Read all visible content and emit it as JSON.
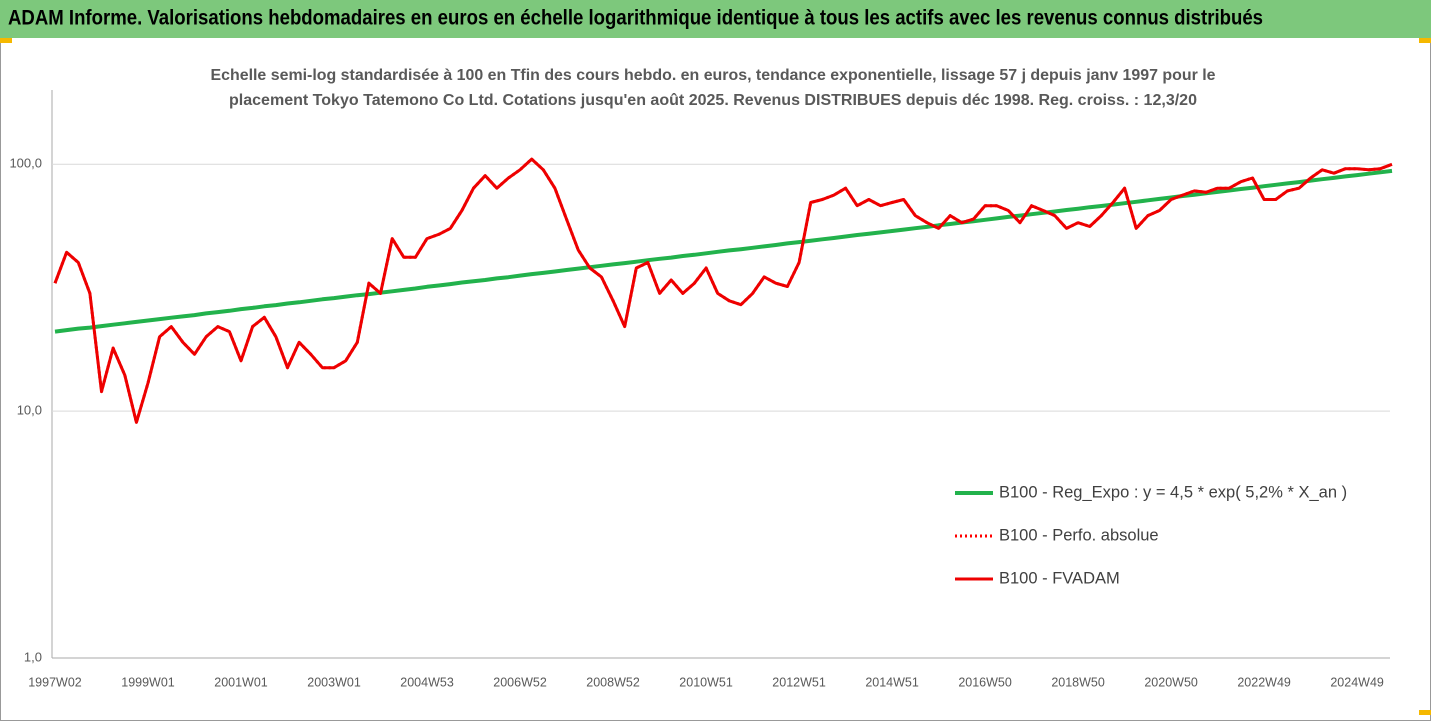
{
  "header": {
    "title": "ADAM Informe. Valorisations hebdomadaires en euros en échelle logarithmique identique à tous les actifs avec les revenus connus distribués"
  },
  "chart_data": {
    "type": "line",
    "subtitle": [
      "Echelle semi-log standardisée à 100 en Tfin des cours hebdo. en euros, tendance exponentielle, lissage 57 j depuis janv 1997 pour le",
      "placement Tokyo Tatemono Co Ltd. Cotations jusqu'en août 2025. Revenus DISTRIBUES depuis déc 1998. Reg. croiss. : 12,3/20"
    ],
    "log_scale": true,
    "grid": true,
    "legend": "right",
    "ylim": [
      1,
      200
    ],
    "yticks": [
      {
        "value": 1,
        "label": "1,0"
      },
      {
        "value": 10,
        "label": "10,0"
      },
      {
        "value": 100,
        "label": "100,0"
      }
    ],
    "categories": [
      "1997W02",
      null,
      null,
      null,
      null,
      null,
      null,
      null,
      "1999W01",
      null,
      null,
      null,
      null,
      null,
      null,
      null,
      "2001W01",
      null,
      null,
      null,
      null,
      null,
      null,
      null,
      "2003W01",
      null,
      null,
      null,
      null,
      null,
      null,
      null,
      "2004W53",
      null,
      null,
      null,
      null,
      null,
      null,
      null,
      "2006W52",
      null,
      null,
      null,
      null,
      null,
      null,
      null,
      "2008W52",
      null,
      null,
      null,
      null,
      null,
      null,
      null,
      "2010W51",
      null,
      null,
      null,
      null,
      null,
      null,
      null,
      "2012W51",
      null,
      null,
      null,
      null,
      null,
      null,
      null,
      "2014W51",
      null,
      null,
      null,
      null,
      null,
      null,
      null,
      "2016W50",
      null,
      null,
      null,
      null,
      null,
      null,
      null,
      "2018W50",
      null,
      null,
      null,
      null,
      null,
      null,
      null,
      "2020W50",
      null,
      null,
      null,
      null,
      null,
      null,
      null,
      "2022W49",
      null,
      null,
      null,
      null,
      null,
      null,
      null,
      "2024W49",
      null,
      null,
      null
    ],
    "series": [
      {
        "name": "B100 - Reg_Expo : y = 4,5 * exp( 5,2% *  X_an )",
        "color": "#22b24c",
        "style": "solid",
        "width": 4,
        "values": [
          21.0,
          21.3,
          21.6,
          21.8,
          22.1,
          22.4,
          22.7,
          23.0,
          23.3,
          23.6,
          23.9,
          24.2,
          24.5,
          24.9,
          25.2,
          25.5,
          25.9,
          26.2,
          26.6,
          26.9,
          27.3,
          27.6,
          28.0,
          28.4,
          28.7,
          29.1,
          29.5,
          29.8,
          30.2,
          30.6,
          31.0,
          31.4,
          31.9,
          32.3,
          32.7,
          33.2,
          33.6,
          34.0,
          34.5,
          34.9,
          35.4,
          35.9,
          36.3,
          36.8,
          37.3,
          37.8,
          38.3,
          38.8,
          39.3,
          39.8,
          40.3,
          40.9,
          41.4,
          41.9,
          42.5,
          43.0,
          43.6,
          44.2,
          44.8,
          45.3,
          45.9,
          46.5,
          47.1,
          47.8,
          48.4,
          49.0,
          49.7,
          50.3,
          51.0,
          51.7,
          52.3,
          53.0,
          53.7,
          54.4,
          55.1,
          55.8,
          56.6,
          57.3,
          58.1,
          58.8,
          59.6,
          60.4,
          61.2,
          62.0,
          62.8,
          63.6,
          64.4,
          65.3,
          66.1,
          67.0,
          67.8,
          68.7,
          69.6,
          70.5,
          71.5,
          72.4,
          73.4,
          74.4,
          75.3,
          76.3,
          77.3,
          78.3,
          79.4,
          80.4,
          81.5,
          82.6,
          83.7,
          84.7,
          85.9,
          87.0,
          88.1,
          89.3,
          90.4,
          91.6,
          92.8,
          94.0
        ]
      },
      {
        "name": "B100 - Perfo. absolue",
        "color": "#ff0000",
        "style": "dotted",
        "width": 3,
        "values": [
          33,
          44,
          40,
          30,
          12,
          18,
          14,
          9,
          13,
          20,
          22,
          19,
          17,
          20,
          22,
          21,
          16,
          22,
          24,
          20,
          15,
          19,
          17,
          15,
          15,
          16,
          19,
          33,
          30,
          50,
          42,
          42,
          50,
          52,
          55,
          65,
          80,
          90,
          80,
          88,
          95,
          105,
          95,
          80,
          60,
          45,
          38,
          35,
          28,
          22,
          38,
          40,
          30,
          34,
          30,
          33,
          38,
          30,
          28,
          27,
          30,
          35,
          33,
          32,
          40,
          70,
          72,
          75,
          80,
          68,
          72,
          68,
          70,
          72,
          62,
          58,
          55,
          62,
          58,
          60,
          68,
          68,
          65,
          58,
          68,
          65,
          62,
          55,
          58,
          56,
          62,
          70,
          80,
          55,
          62,
          65,
          72,
          75,
          78,
          77,
          80,
          80,
          85,
          88,
          72,
          72,
          78,
          80,
          88,
          95,
          92,
          96,
          96,
          95,
          96,
          100
        ]
      },
      {
        "name": "B100 - FVADAM",
        "color": "#ee0000",
        "style": "solid",
        "width": 3,
        "values": [
          33,
          44,
          40,
          30,
          12,
          18,
          14,
          9,
          13,
          20,
          22,
          19,
          17,
          20,
          22,
          21,
          16,
          22,
          24,
          20,
          15,
          19,
          17,
          15,
          15,
          16,
          19,
          33,
          30,
          50,
          42,
          42,
          50,
          52,
          55,
          65,
          80,
          90,
          80,
          88,
          95,
          105,
          95,
          80,
          60,
          45,
          38,
          35,
          28,
          22,
          38,
          40,
          30,
          34,
          30,
          33,
          38,
          30,
          28,
          27,
          30,
          35,
          33,
          32,
          40,
          70,
          72,
          75,
          80,
          68,
          72,
          68,
          70,
          72,
          62,
          58,
          55,
          62,
          58,
          60,
          68,
          68,
          65,
          58,
          68,
          65,
          62,
          55,
          58,
          56,
          62,
          70,
          80,
          55,
          62,
          65,
          72,
          75,
          78,
          77,
          80,
          80,
          85,
          88,
          72,
          72,
          78,
          80,
          88,
          95,
          92,
          96,
          96,
          95,
          96,
          100
        ]
      }
    ]
  }
}
